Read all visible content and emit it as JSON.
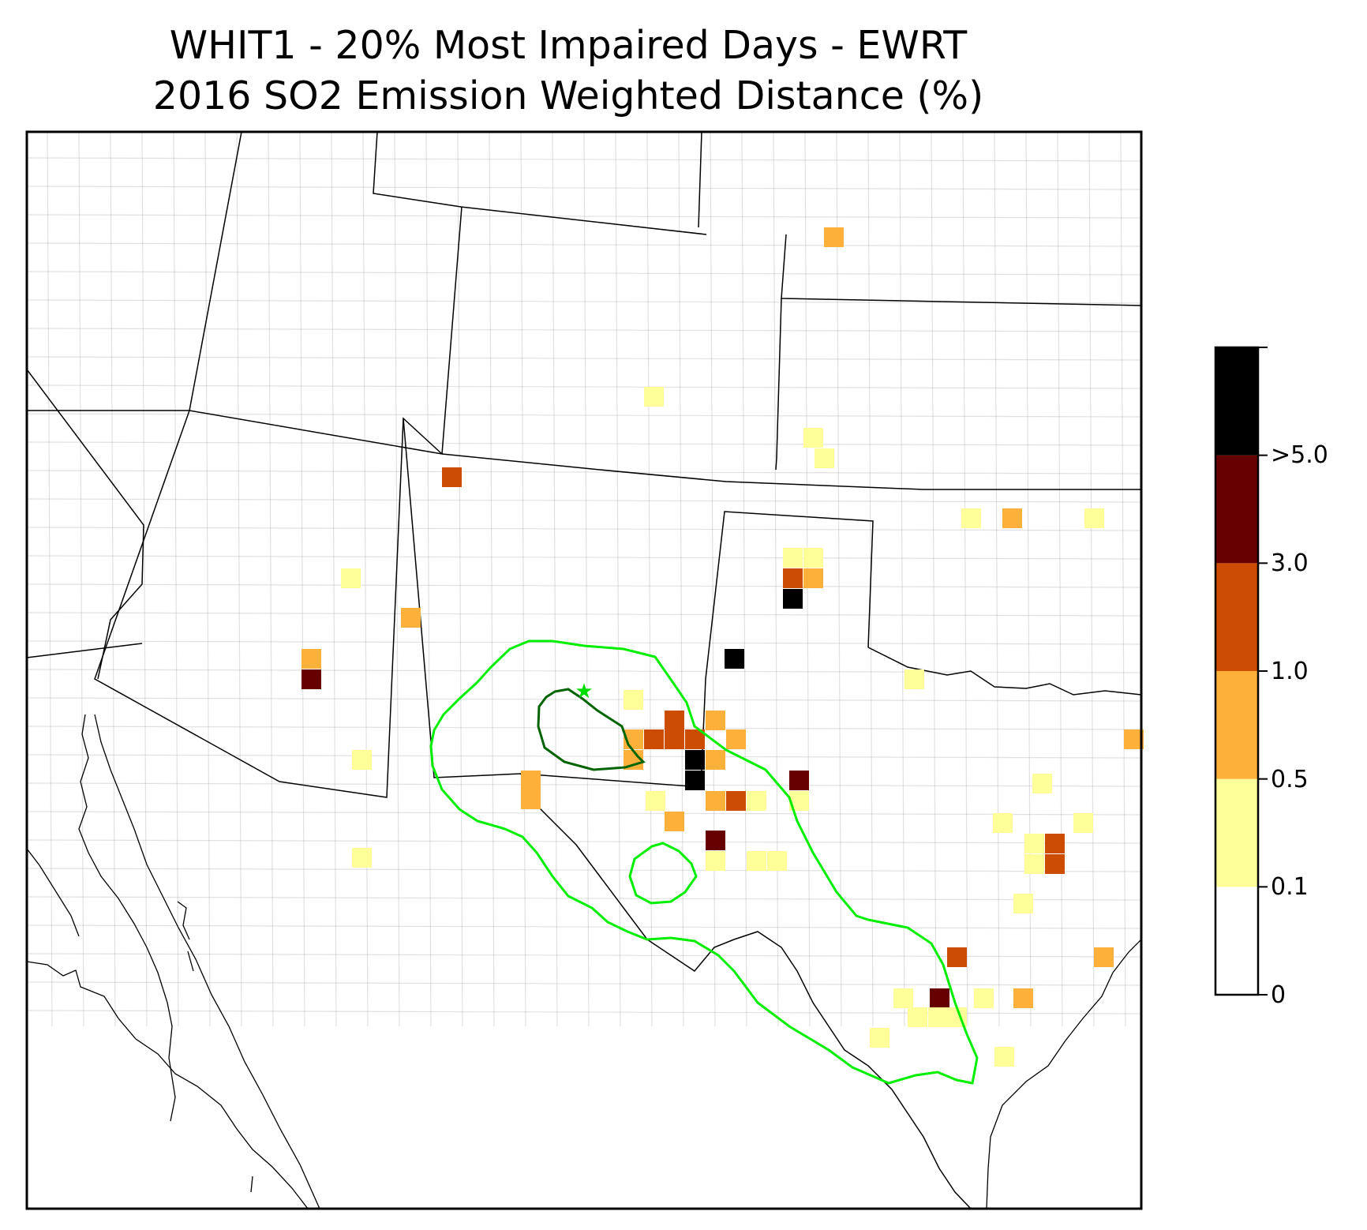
{
  "title": {
    "line1": "WHIT1 - 20% Most Impaired Days - EWRT",
    "line2": "2016 SO2 Emission Weighted Distance (%)"
  },
  "colorbar": {
    "levels": [
      {
        "label": "0",
        "color": "#ffffff"
      },
      {
        "label": "0.1",
        "color": "#ffff99"
      },
      {
        "label": "0.5",
        "color": "#fdb03a"
      },
      {
        "label": "1.0",
        "color": "#cc4c02"
      },
      {
        "label": "3.0",
        "color": "#660000"
      },
      {
        "label": ">5.0",
        "color": "#000000"
      }
    ]
  },
  "map": {
    "site_marker": "star-icon",
    "contour_colors": {
      "inner": "#006400",
      "outer": "#00ee00"
    },
    "cell_bins": [
      "0.1-0.5",
      "0.5-1.0",
      "1.0-3.0",
      "3.0-5.0",
      ">5.0"
    ]
  }
}
